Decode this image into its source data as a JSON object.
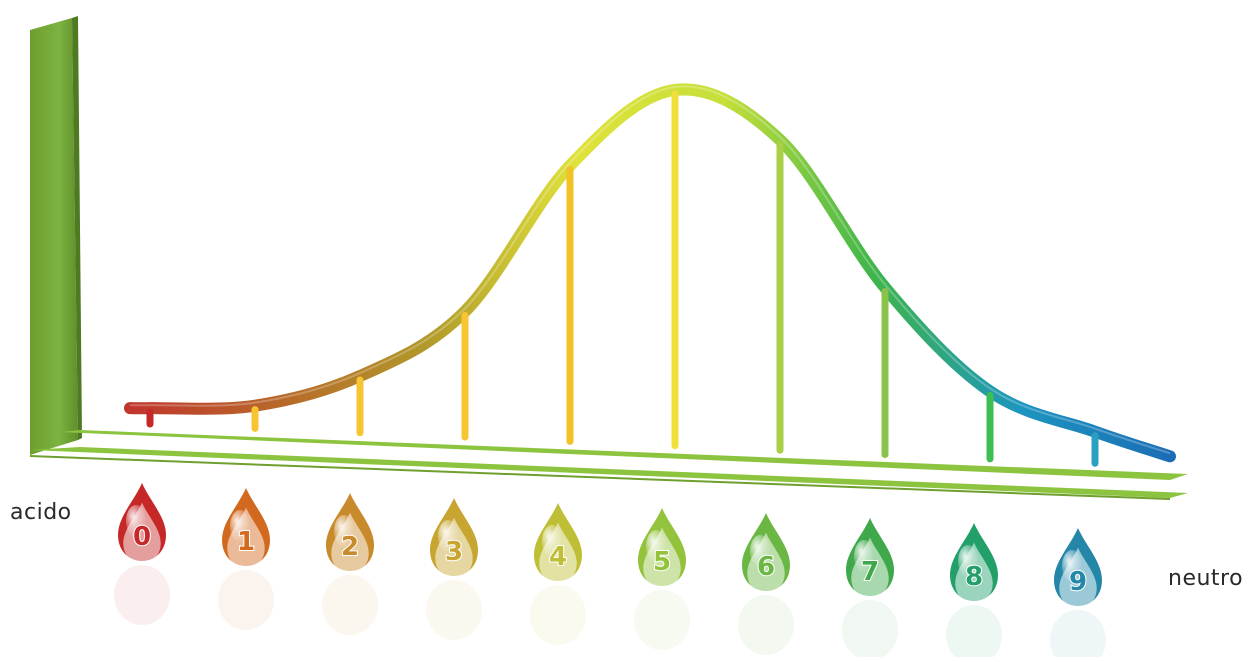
{
  "labels": {
    "left": "acido",
    "right": "neutro"
  },
  "chart_data": {
    "type": "line",
    "x": [
      0,
      1,
      2,
      3,
      4,
      5,
      6,
      7,
      8,
      9
    ],
    "tick_labels": [
      "0",
      "1",
      "2",
      "3",
      "4",
      "5",
      "6",
      "7",
      "8",
      "9"
    ],
    "values": [
      0.03,
      0.05,
      0.15,
      0.35,
      0.78,
      1.0,
      0.86,
      0.45,
      0.17,
      0.07
    ],
    "ylim": [
      0,
      1.1
    ],
    "grid": false,
    "legend": "none",
    "xlabel": "",
    "ylabel": "",
    "colors": {
      "axis": "#7cb342",
      "axis_dark": "#5f8f2a",
      "stems": [
        "#c62828",
        "#f6c531",
        "#f6c531",
        "#f6c531",
        "#f2c126",
        "#f0e13a",
        "#a8cf45",
        "#8bc34a",
        "#3bbf55",
        "#2aa0c0"
      ],
      "drops": [
        "#c62828",
        "#d2691e",
        "#c98a2c",
        "#c8a531",
        "#bfbf36",
        "#93c23d",
        "#6ab744",
        "#3ea84a",
        "#23a06a",
        "#2487a8"
      ],
      "curve_stops": [
        "#c0362c",
        "#b8682a",
        "#b19a2a",
        "#dfe23a",
        "#c6df3a",
        "#3fb54a",
        "#1c95bf",
        "#1b6db5"
      ]
    }
  }
}
